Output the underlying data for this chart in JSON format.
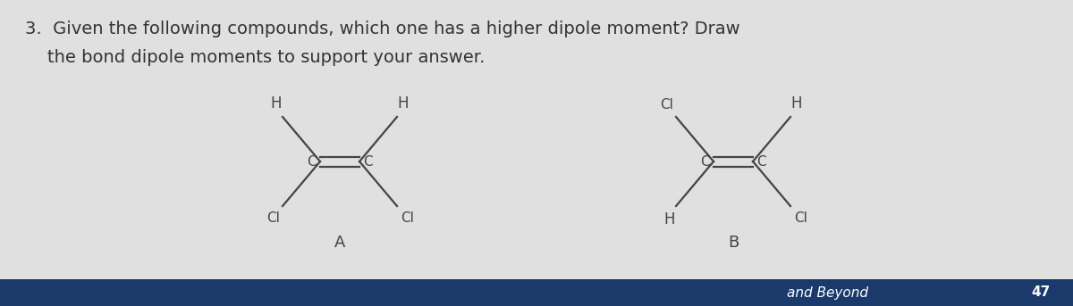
{
  "bg_color": "#e0e0e0",
  "bottom_bar_color": "#1a3a6b",
  "title_line1": "3.  Given the following compounds, which one has a higher dipole moment? Draw",
  "title_line2": "    the bond dipole moments to support your answer.",
  "title_fontsize": 14,
  "molecule_A_label": "A",
  "molecule_B_label": "B",
  "bottom_text": "and Beyond",
  "page_number": "47",
  "bond_color": "#444444",
  "label_color": "#444444"
}
